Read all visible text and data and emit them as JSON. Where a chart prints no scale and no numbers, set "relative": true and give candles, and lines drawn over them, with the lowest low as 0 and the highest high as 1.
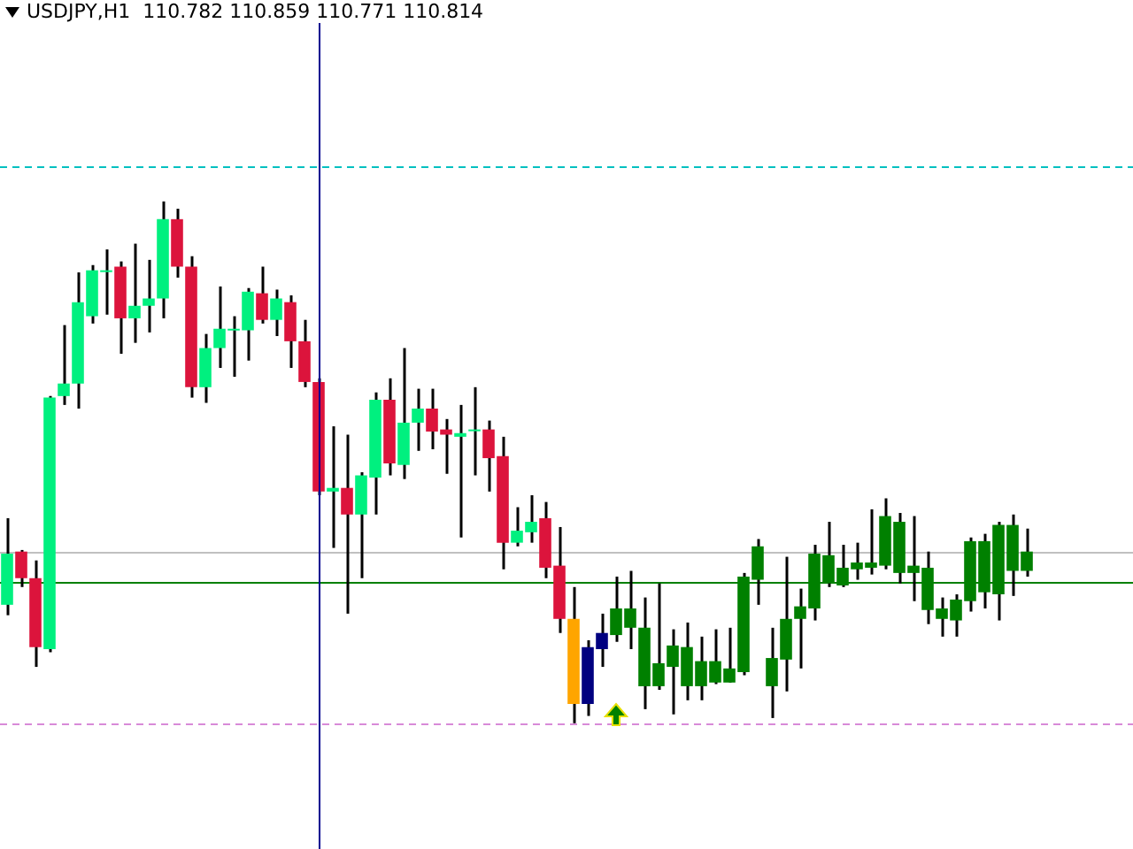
{
  "chart_data": {
    "type": "candlestick",
    "title": "USDJPY,H1  110.782 110.859 110.771 110.814",
    "relative": true,
    "categories": [
      null,
      null,
      null,
      null,
      null,
      null,
      null,
      null,
      null,
      null,
      null,
      null,
      null,
      null,
      null,
      null,
      null,
      null,
      null,
      null,
      null,
      null,
      null,
      null,
      null,
      null,
      null,
      null,
      null,
      null,
      null,
      null,
      null,
      null,
      null,
      null,
      null,
      null,
      null,
      null,
      null,
      null,
      null,
      null,
      null,
      null,
      null,
      null,
      null,
      null,
      null,
      null,
      null,
      null,
      null,
      null,
      null,
      null,
      null,
      null,
      null,
      null,
      null,
      null,
      null,
      null,
      null,
      null,
      null,
      null,
      null,
      null,
      null,
      null,
      null,
      null,
      null,
      null,
      null,
      null
    ],
    "ohlc": [
      [
        0.227,
        0.393,
        0.207,
        0.325
      ],
      [
        0.329,
        0.332,
        0.261,
        0.278
      ],
      [
        0.278,
        0.312,
        0.108,
        0.146
      ],
      [
        0.142,
        0.627,
        0.136,
        0.624
      ],
      [
        0.627,
        0.763,
        0.61,
        0.651
      ],
      [
        0.651,
        0.864,
        0.603,
        0.807
      ],
      [
        0.78,
        0.878,
        0.766,
        0.868
      ],
      [
        0.868,
        0.908,
        0.783,
        0.868
      ],
      [
        0.875,
        0.885,
        0.708,
        0.776
      ],
      [
        0.776,
        0.919,
        0.729,
        0.8
      ],
      [
        0.8,
        0.888,
        0.749,
        0.814
      ],
      [
        0.814,
        1,
        0.776,
        0.966
      ],
      [
        0.966,
        0.986,
        0.854,
        0.875
      ],
      [
        0.875,
        0.895,
        0.624,
        0.644
      ],
      [
        0.644,
        0.746,
        0.614,
        0.719
      ],
      [
        0.719,
        0.837,
        0.681,
        0.756
      ],
      [
        0.756,
        0.78,
        0.664,
        0.756
      ],
      [
        0.753,
        0.834,
        0.695,
        0.827
      ],
      [
        0.824,
        0.875,
        0.766,
        0.773
      ],
      [
        0.773,
        0.831,
        0.742,
        0.814
      ],
      [
        0.807,
        0.82,
        0.681,
        0.732
      ],
      [
        0.732,
        0.773,
        0.644,
        0.654
      ],
      [
        0.654,
        0.661,
        0.437,
        0.444
      ],
      [
        0.444,
        0.569,
        0.336,
        0.451
      ],
      [
        0.451,
        0.553,
        0.21,
        0.4
      ],
      [
        0.4,
        0.481,
        0.278,
        0.475
      ],
      [
        0.471,
        0.634,
        0.4,
        0.62
      ],
      [
        0.62,
        0.661,
        0.475,
        0.498
      ],
      [
        0.495,
        0.719,
        0.468,
        0.576
      ],
      [
        0.576,
        0.641,
        0.522,
        0.603
      ],
      [
        0.603,
        0.641,
        0.525,
        0.559
      ],
      [
        0.563,
        0.583,
        0.478,
        0.553
      ],
      [
        0.549,
        0.61,
        0.356,
        0.556
      ],
      [
        0.563,
        0.644,
        0.475,
        0.563
      ],
      [
        0.563,
        0.58,
        0.444,
        0.508
      ],
      [
        0.512,
        0.549,
        0.295,
        0.346
      ],
      [
        0.346,
        0.414,
        0.339,
        0.369
      ],
      [
        0.366,
        0.437,
        0.346,
        0.386
      ],
      [
        0.393,
        0.424,
        0.278,
        0.298
      ],
      [
        0.302,
        0.376,
        0.173,
        0.2
      ],
      [
        0.2,
        0.261,
        0,
        0.037
      ],
      [
        0.037,
        0.159,
        0.014,
        0.146
      ],
      [
        0.142,
        0.21,
        0.108,
        0.173
      ],
      [
        0.169,
        0.281,
        0.156,
        0.22
      ],
      [
        0.22,
        0.292,
        0.142,
        0.183
      ],
      [
        0.183,
        0.241,
        0.027,
        0.071
      ],
      [
        0.071,
        0.268,
        0.064,
        0.115
      ],
      [
        0.108,
        0.18,
        0.017,
        0.149
      ],
      [
        0.146,
        0.193,
        0.044,
        0.071
      ],
      [
        0.071,
        0.166,
        0.044,
        0.119
      ],
      [
        0.119,
        0.18,
        0.075,
        0.078
      ],
      [
        0.078,
        0.183,
        0.078,
        0.105
      ],
      [
        0.098,
        0.288,
        0.092,
        0.281
      ],
      [
        0.275,
        0.353,
        0.227,
        0.339
      ],
      [
        0.071,
        0.183,
        0.01,
        0.125
      ],
      [
        0.122,
        0.319,
        0.061,
        0.2
      ],
      [
        0.2,
        0.258,
        0.105,
        0.224
      ],
      [
        0.22,
        0.342,
        0.197,
        0.325
      ],
      [
        0.322,
        0.386,
        0.261,
        0.268
      ],
      [
        0.264,
        0.342,
        0.261,
        0.298
      ],
      [
        0.295,
        0.346,
        0.275,
        0.308
      ],
      [
        0.308,
        0.41,
        0.285,
        0.298
      ],
      [
        0.302,
        0.431,
        0.295,
        0.397
      ],
      [
        0.386,
        0.403,
        0.268,
        0.288
      ],
      [
        0.288,
        0.397,
        0.234,
        0.302
      ],
      [
        0.298,
        0.329,
        0.19,
        0.217
      ],
      [
        0.22,
        0.241,
        0.166,
        0.2
      ],
      [
        0.197,
        0.247,
        0.166,
        0.237
      ],
      [
        0.234,
        0.356,
        0.214,
        0.349
      ],
      [
        0.349,
        0.363,
        0.22,
        0.251
      ],
      [
        0.247,
        0.386,
        0.197,
        0.38
      ],
      [
        0.38,
        0.4,
        0.244,
        0.292
      ],
      [
        0.292,
        0.373,
        0.281,
        0.329
      ],
      null,
      null,
      null,
      null,
      null,
      null,
      null
    ],
    "colors": [
      "#00f07f",
      "#dc143c",
      "#dc143c",
      "#00f07f",
      "#00f07f",
      "#00f07f",
      "#00f07f",
      "#00f07f",
      "#dc143c",
      "#00f07f",
      "#00f07f",
      "#00f07f",
      "#dc143c",
      "#dc143c",
      "#00f07f",
      "#00f07f",
      "#00f07f",
      "#00f07f",
      "#dc143c",
      "#00f07f",
      "#dc143c",
      "#dc143c",
      "#dc143c",
      "#00f07f",
      "#dc143c",
      "#00f07f",
      "#00f07f",
      "#dc143c",
      "#00f07f",
      "#00f07f",
      "#dc143c",
      "#dc143c",
      "#00f07f",
      "#00f07f",
      "#dc143c",
      "#dc143c",
      "#00f07f",
      "#00f07f",
      "#dc143c",
      "#dc143c",
      "#ffa500",
      "#000080",
      "#000080",
      "#008000",
      "#008000",
      "#008000",
      "#008000",
      "#008000",
      "#008000",
      "#008000",
      "#008000",
      "#008000",
      "#008000",
      "#008000",
      "#008000",
      "#008000",
      "#008000",
      "#008000",
      "#008000",
      "#008000",
      "#008000",
      "#008000",
      "#008000",
      "#008000",
      "#008000",
      "#008000",
      "#008000",
      "#008000",
      "#008000",
      "#008000",
      "#008000",
      "#008000",
      "#008000",
      null,
      null,
      null,
      null,
      null,
      null,
      null
    ],
    "ref_lines": [
      {
        "axis": "y",
        "value": 1.068,
        "color": "#00c0c0",
        "line_style": "dashed"
      },
      {
        "axis": "y",
        "value": 0.329,
        "color": "#c0c0c0",
        "line_style": "solid"
      },
      {
        "axis": "y",
        "value": 0.271,
        "color": "#008000",
        "line_style": "solid"
      },
      {
        "axis": "y",
        "value": 0,
        "color": "#d88ad8",
        "line_style": "dashed"
      }
    ]
  }
}
